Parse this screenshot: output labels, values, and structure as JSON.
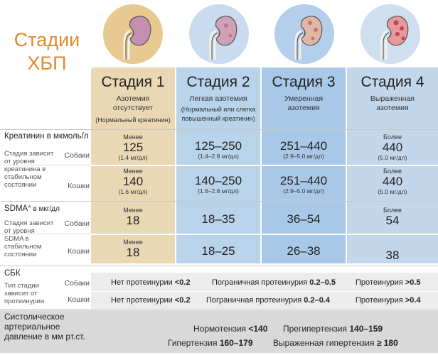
{
  "title": [
    "Стадии",
    "ХБП"
  ],
  "stages": [
    {
      "name": "Стадия 1",
      "desc": "Азотемия отсутствует",
      "note": "(Нормальный креатинин)"
    },
    {
      "name": "Стадия 2",
      "desc": "Легкая азотемия",
      "note": "(Нормальный или слегка повышенный креатинин)"
    },
    {
      "name": "Стадия 3",
      "desc": "Умеренная азотемия",
      "note": ""
    },
    {
      "name": "Стадия 4",
      "desc": "Выраженная азотемия",
      "note": ""
    }
  ],
  "creatinine": {
    "label": "Креатинин в мкмоль/л",
    "sublabel": "Стадия зависит от уровня креатинина в стабильном состоянии",
    "species": [
      "Собаки",
      "Кошки"
    ],
    "dogs": [
      {
        "pre": "Менее",
        "val": "125",
        "unit": "(1.4 мг/дл)"
      },
      {
        "pre": "",
        "val": "125–250",
        "unit": "(1.4–2.8 мг/дл)"
      },
      {
        "pre": "",
        "val": "251–440",
        "unit": "(2.9–5.0 мг/дл)"
      },
      {
        "pre": "Более",
        "val": "440",
        "unit": "(5.0 мг/дл)"
      }
    ],
    "cats": [
      {
        "pre": "Менее",
        "val": "140",
        "unit": "(1.6 мг/дл)"
      },
      {
        "pre": "",
        "val": "140–250",
        "unit": "(1.6–2.8 мг/дл)"
      },
      {
        "pre": "",
        "val": "251–440",
        "unit": "(2.9–5.0 мг/дл)"
      },
      {
        "pre": "Более",
        "val": "440",
        "unit": "(5.0 мг/дл)"
      }
    ]
  },
  "sdma": {
    "label": "SDMA",
    "star": "*",
    "label_unit": " в мкг/дл",
    "sublabel": "Стадия зависит от уровня SDMA в стабильном состоянии",
    "species": [
      "Собаки",
      "Кошки"
    ],
    "dogs": [
      {
        "pre": "Менее",
        "val": "18"
      },
      {
        "pre": "",
        "val": "18–35"
      },
      {
        "pre": "",
        "val": "36–54"
      },
      {
        "pre": "Более",
        "val": "54"
      }
    ],
    "cats": [
      {
        "pre": "Менее",
        "val": "18"
      },
      {
        "pre": "",
        "val": "18–25"
      },
      {
        "pre": "",
        "val": "26–38"
      },
      {
        "pre": "",
        "val": "38"
      }
    ]
  },
  "sbk": {
    "label": "СБК",
    "sublabel": "Тип стадии зависит от протеинурии",
    "species": [
      "Собаки",
      "Кошки"
    ],
    "dogs": [
      {
        "text": "Нет протеинурии ",
        "bold": "<0.2"
      },
      {
        "text": "Пограничная протеинурия ",
        "bold": "0.2–0.5"
      },
      {
        "text": "Протеинурия ",
        "bold": ">0.5"
      }
    ],
    "cats": [
      {
        "text": "Нет протеинурии ",
        "bold": "<0.2"
      },
      {
        "text": "Пограничная протеинурия ",
        "bold": "0.2–0.4"
      },
      {
        "text": "Протеинурия ",
        "bold": ">0.4"
      }
    ]
  },
  "bp": {
    "label": "Систолическое артериальное давление в мм рт.ст.",
    "items": [
      {
        "text": "Нормотензия ",
        "bold": "<140"
      },
      {
        "text": "Прегипертензия ",
        "bold": "140–159"
      },
      {
        "text": "Гипертензия ",
        "bold": "160–179"
      },
      {
        "text": "Выраженная гипертензия ",
        "bold": "≥ 180"
      }
    ]
  },
  "colors": {
    "title": "#e08a2c",
    "stage1": "#ead8b4",
    "stage2": "#b9d3ea",
    "stage3": "#a9c8e8",
    "stage4": "#c3d7ec",
    "sdma_star": "#d9342b"
  }
}
